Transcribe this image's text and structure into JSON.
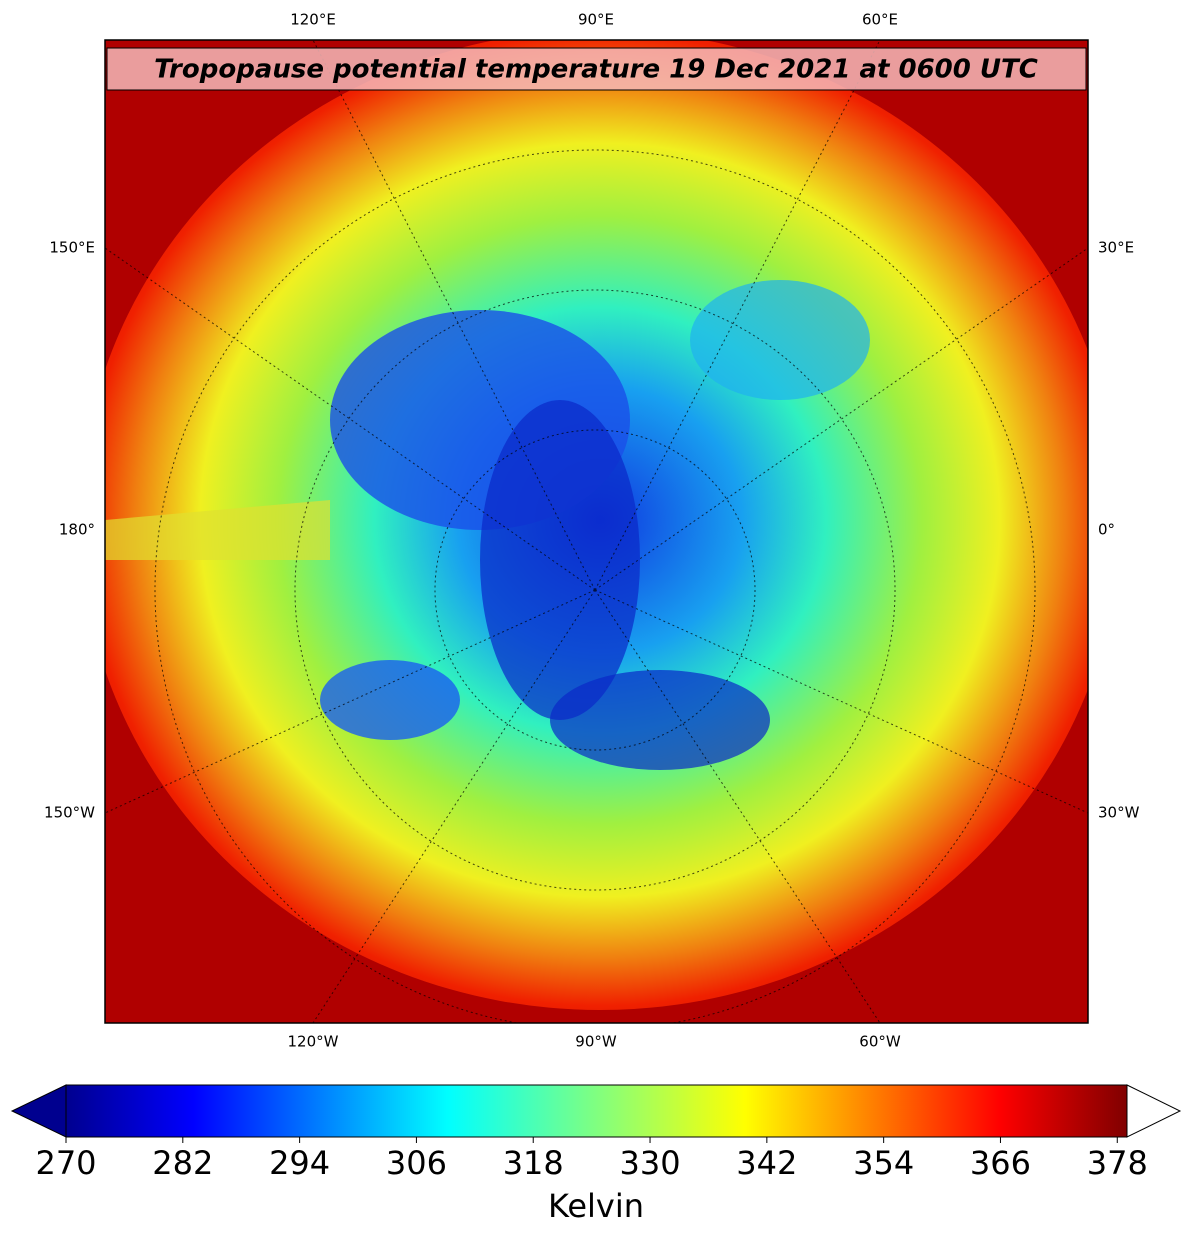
{
  "title": "Tropopause potential temperature 19 Dec 2021 at 0600 UTC",
  "map": {
    "top_labels": [
      "120°E",
      "90°E",
      "60°E"
    ],
    "bottom_labels": [
      "120°W",
      "90°W",
      "60°W"
    ],
    "left_labels": [
      "150°E",
      "180°",
      "150°W"
    ],
    "right_labels": [
      "30°E",
      "0°",
      "30°W"
    ]
  },
  "colorbar": {
    "lim": [
      270,
      379
    ],
    "ticks": [
      270,
      282,
      294,
      306,
      318,
      330,
      342,
      354,
      366,
      378
    ],
    "label": "Kelvin",
    "extend": "both"
  }
}
